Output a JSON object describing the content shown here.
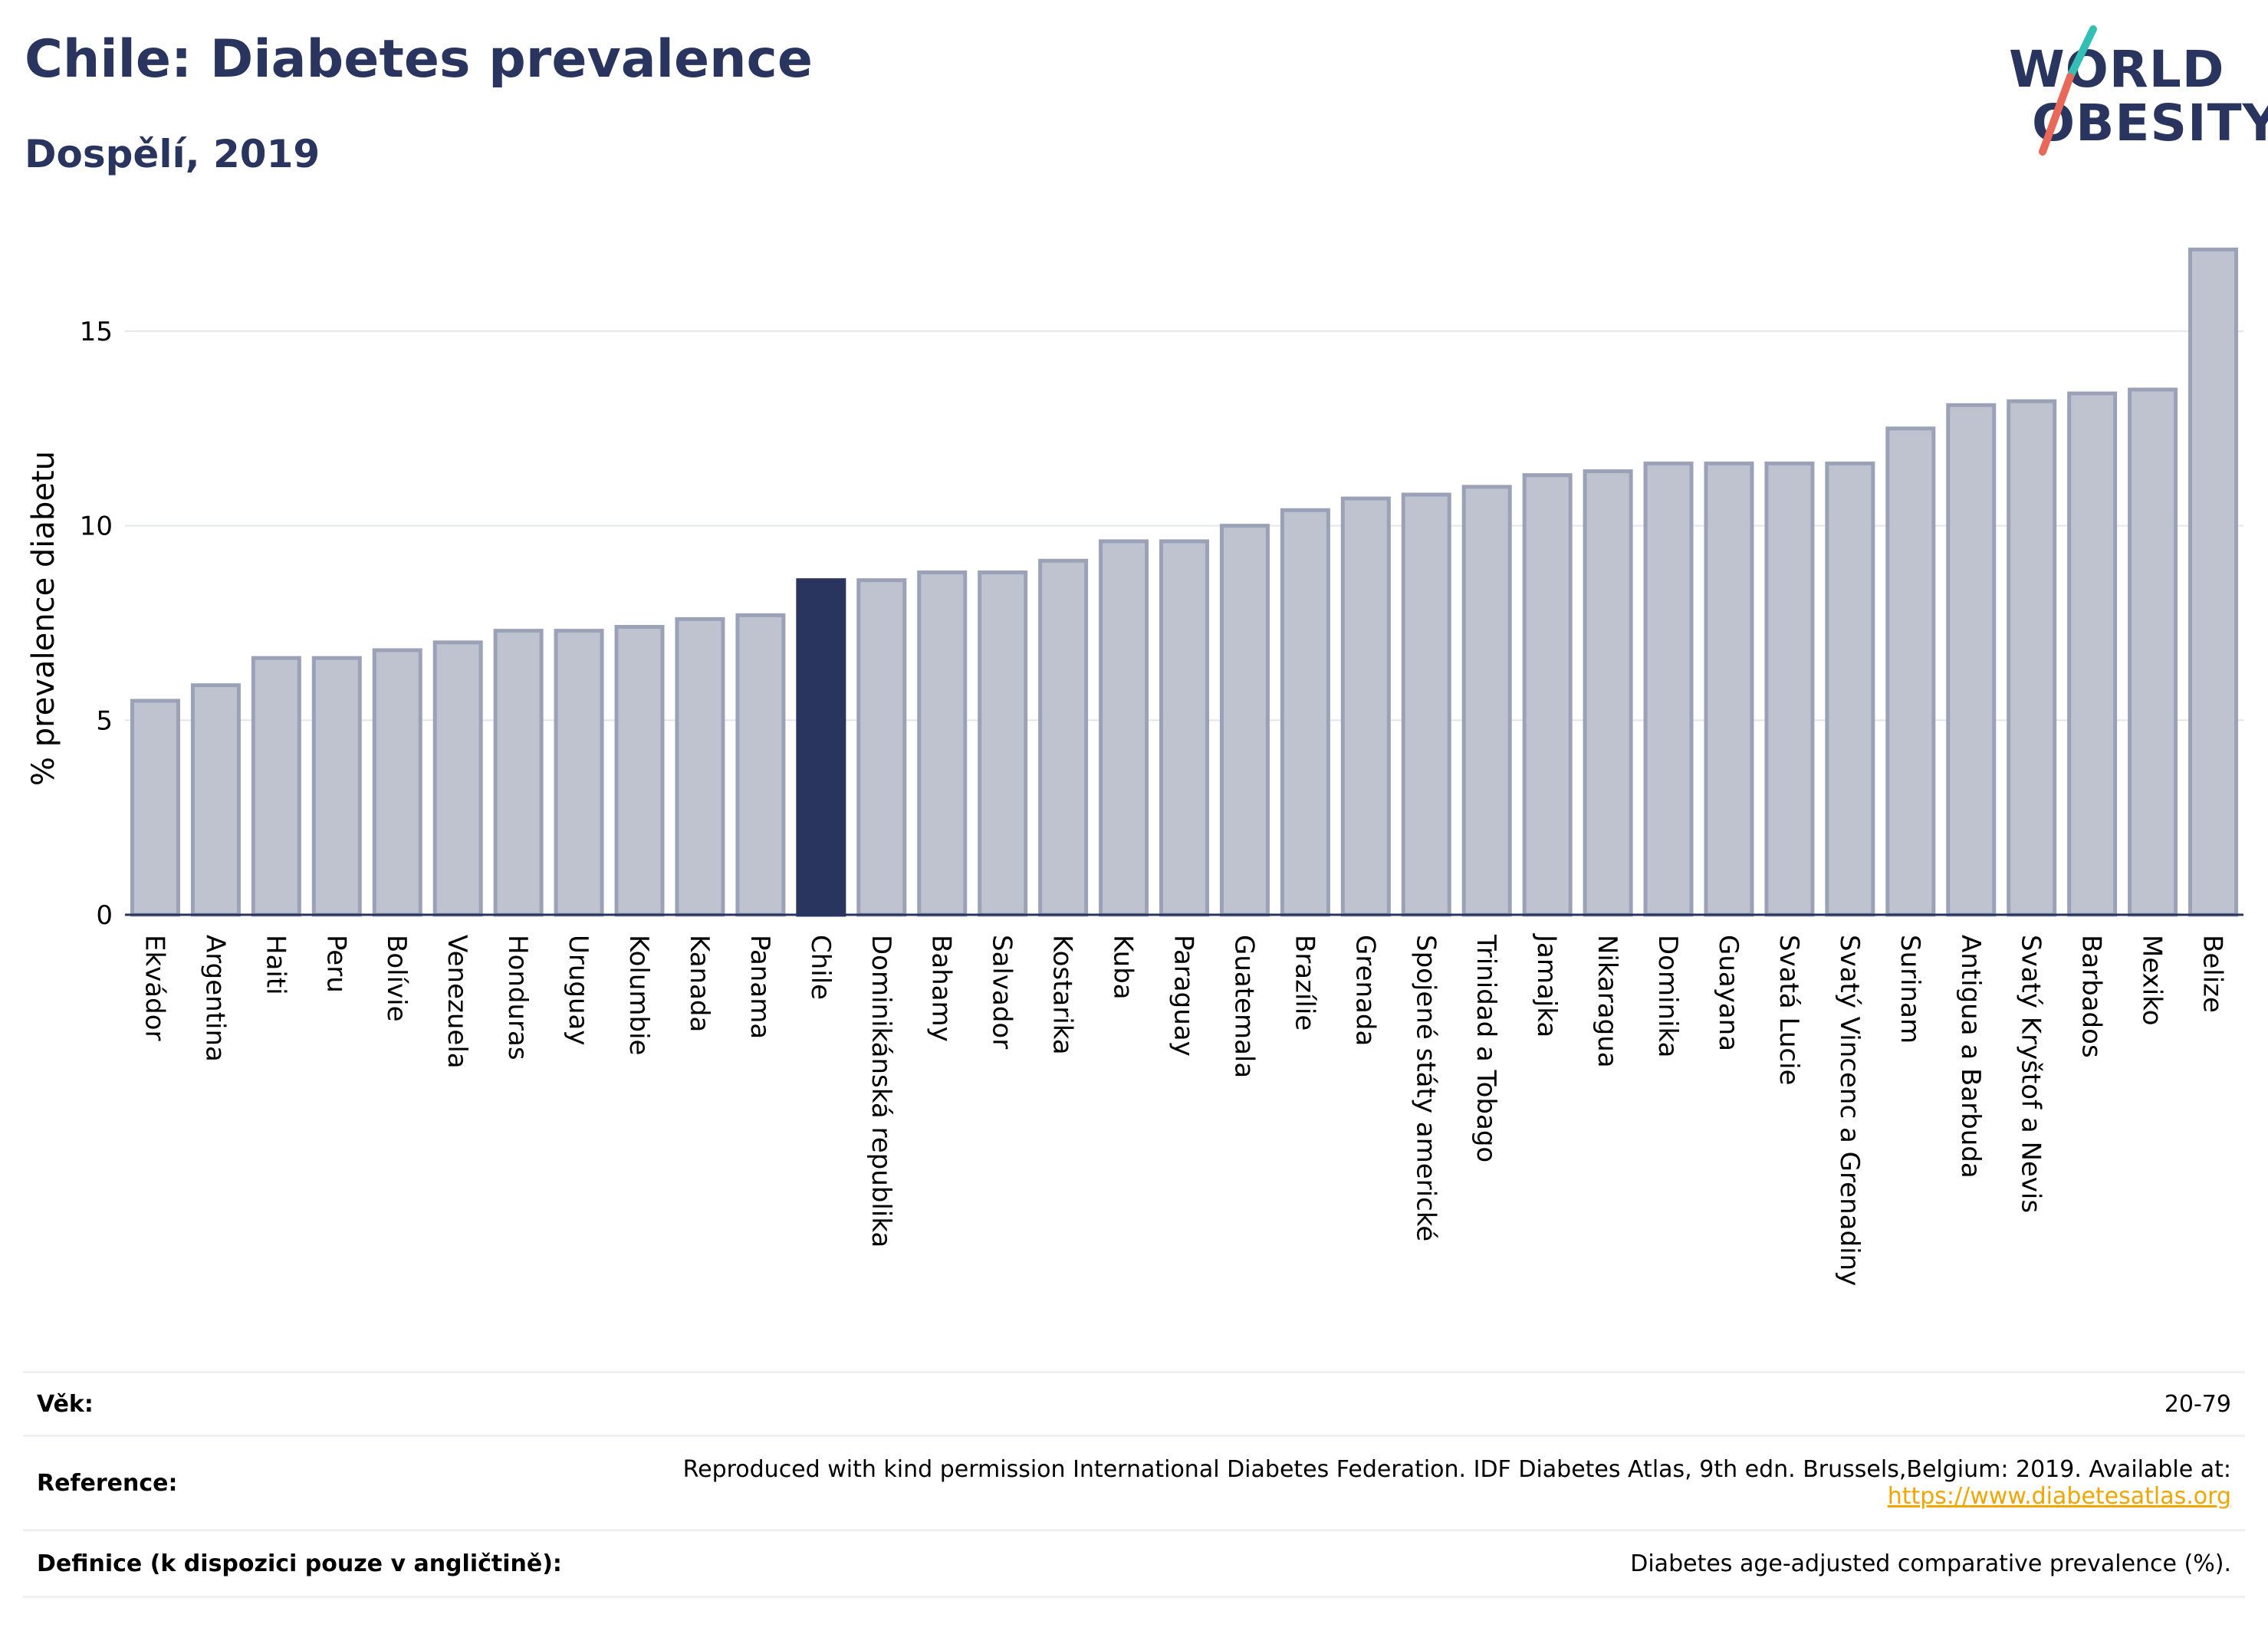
{
  "header": {
    "title": "Chile: Diabetes prevalence",
    "subtitle": "Dospělí, 2019"
  },
  "logo": {
    "line1": "WORLD",
    "line2": "OBESITY",
    "slash_colors": [
      "#33bfb5",
      "#e8685a"
    ]
  },
  "chart_data": {
    "type": "bar",
    "ylabel": "% prevalence diabetu",
    "ylim": [
      0,
      17.6
    ],
    "yticks": [
      0,
      5,
      10,
      15
    ],
    "highlight": "Chile",
    "highlight_color": "#2a355f",
    "bar_color": "#bfc3d0",
    "bar_edge_color": "#9ba2b8",
    "grid": true,
    "categories": [
      "Ekvádor",
      "Argentina",
      "Haiti",
      "Peru",
      "Bolívie",
      "Venezuela",
      "Honduras",
      "Uruguay",
      "Kolumbie",
      "Kanada",
      "Panama",
      "Chile",
      "Dominikánská republika",
      "Bahamy",
      "Salvador",
      "Kostarika",
      "Kuba",
      "Paraguay",
      "Guatemala",
      "Brazílie",
      "Grenada",
      "Spojené státy americké",
      "Trinidad a Tobago",
      "Jamajka",
      "Nikaragua",
      "Dominika",
      "Guayana",
      "Svatá Lucie",
      "Svatý Vincenc a Grenadiny",
      "Surinam",
      "Antigua a Barbuda",
      "Svatý Kryštof a Nevis",
      "Barbados",
      "Mexiko",
      "Belize"
    ],
    "values": [
      5.5,
      5.9,
      6.6,
      6.6,
      6.8,
      7.0,
      7.3,
      7.3,
      7.4,
      7.6,
      7.7,
      8.6,
      8.6,
      8.8,
      8.8,
      9.1,
      9.6,
      9.6,
      10.0,
      10.4,
      10.7,
      10.8,
      11.0,
      11.3,
      11.4,
      11.6,
      11.6,
      11.6,
      11.6,
      12.5,
      13.1,
      13.2,
      13.4,
      13.5,
      17.1
    ]
  },
  "footer": {
    "age_label": "Věk:",
    "age_value": "20-79",
    "reference_label": "Reference:",
    "reference_text": "Reproduced with kind permission International Diabetes Federation. IDF Diabetes Atlas, 9th edn. Brussels,Belgium: 2019. Available at:",
    "reference_link": "https://www.diabetesatlas.org",
    "definition_label": "Definice (k dispozici pouze v angličtině):",
    "definition_value": "Diabetes age-adjusted comparative prevalence (%)."
  }
}
